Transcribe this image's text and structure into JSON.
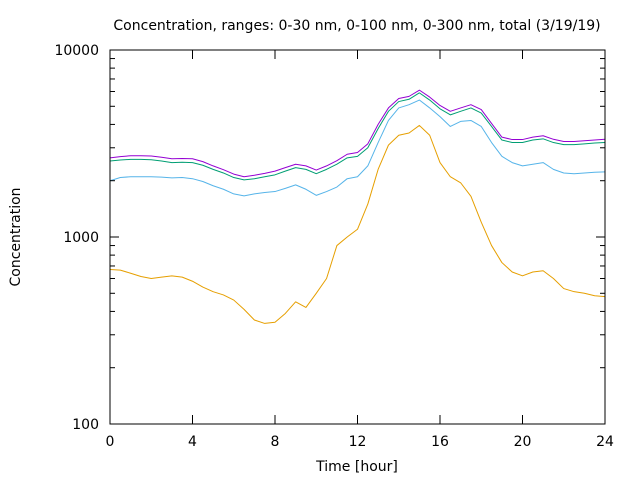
{
  "chart_data": {
    "type": "line",
    "title": "Concentration, ranges: 0-30 nm, 0-100 nm, 0-300 nm, total (3/19/19)",
    "xlabel": "Time [hour]",
    "ylabel": "Concentration",
    "xlim": [
      0,
      24
    ],
    "ylim": [
      100,
      10000
    ],
    "yscale": "log",
    "x_ticks": [
      "0",
      "4",
      "8",
      "12",
      "16",
      "20",
      "24"
    ],
    "y_ticks": [
      "100",
      "1000",
      "10000"
    ],
    "grid": false,
    "legend": "none",
    "x": [
      0,
      0.5,
      1,
      1.5,
      2,
      2.5,
      3,
      3.5,
      4,
      4.5,
      5,
      5.5,
      6,
      6.5,
      7,
      7.5,
      8,
      8.5,
      9,
      9.5,
      10,
      10.5,
      11,
      11.5,
      12,
      12.5,
      13,
      13.5,
      14,
      14.5,
      15,
      15.5,
      16,
      16.5,
      17,
      17.5,
      18,
      18.5,
      19,
      19.5,
      20,
      20.5,
      21,
      21.5,
      22,
      22.5,
      23,
      23.5,
      24
    ],
    "series": [
      {
        "color": "#e69f00",
        "values": [
          670,
          665,
          640,
          615,
          600,
          610,
          620,
          610,
          580,
          540,
          510,
          490,
          460,
          410,
          360,
          345,
          350,
          390,
          450,
          420,
          500,
          600,
          900,
          1000,
          1100,
          1500,
          2300,
          3100,
          3500,
          3600,
          3950,
          3500,
          2500,
          2100,
          1950,
          1650,
          1200,
          900,
          730,
          650,
          620,
          650,
          660,
          600,
          530,
          510,
          500,
          485,
          480
        ]
      },
      {
        "color": "#56b4e9",
        "values": [
          2000,
          2080,
          2100,
          2100,
          2100,
          2090,
          2070,
          2080,
          2050,
          1980,
          1880,
          1800,
          1700,
          1660,
          1700,
          1730,
          1750,
          1820,
          1900,
          1800,
          1670,
          1750,
          1850,
          2050,
          2100,
          2400,
          3200,
          4200,
          4900,
          5100,
          5400,
          4900,
          4400,
          3900,
          4150,
          4200,
          3900,
          3200,
          2700,
          2500,
          2400,
          2450,
          2500,
          2300,
          2200,
          2180,
          2200,
          2220,
          2230
        ]
      },
      {
        "color": "#009e73",
        "values": [
          2550,
          2580,
          2600,
          2600,
          2590,
          2550,
          2500,
          2510,
          2500,
          2420,
          2300,
          2200,
          2080,
          2020,
          2050,
          2100,
          2150,
          2250,
          2350,
          2300,
          2180,
          2300,
          2450,
          2650,
          2700,
          3000,
          3800,
          4700,
          5300,
          5450,
          5900,
          5400,
          4850,
          4500,
          4700,
          4900,
          4600,
          3900,
          3300,
          3200,
          3200,
          3300,
          3350,
          3200,
          3120,
          3120,
          3150,
          3180,
          3200
        ]
      },
      {
        "color": "#9400d3",
        "values": [
          2650,
          2690,
          2720,
          2720,
          2710,
          2670,
          2620,
          2630,
          2620,
          2530,
          2400,
          2290,
          2170,
          2100,
          2140,
          2190,
          2250,
          2350,
          2450,
          2400,
          2280,
          2400,
          2560,
          2770,
          2830,
          3150,
          4000,
          4900,
          5500,
          5650,
          6100,
          5600,
          5050,
          4700,
          4900,
          5100,
          4800,
          4050,
          3420,
          3320,
          3320,
          3420,
          3480,
          3330,
          3240,
          3240,
          3270,
          3300,
          3330
        ]
      }
    ]
  }
}
